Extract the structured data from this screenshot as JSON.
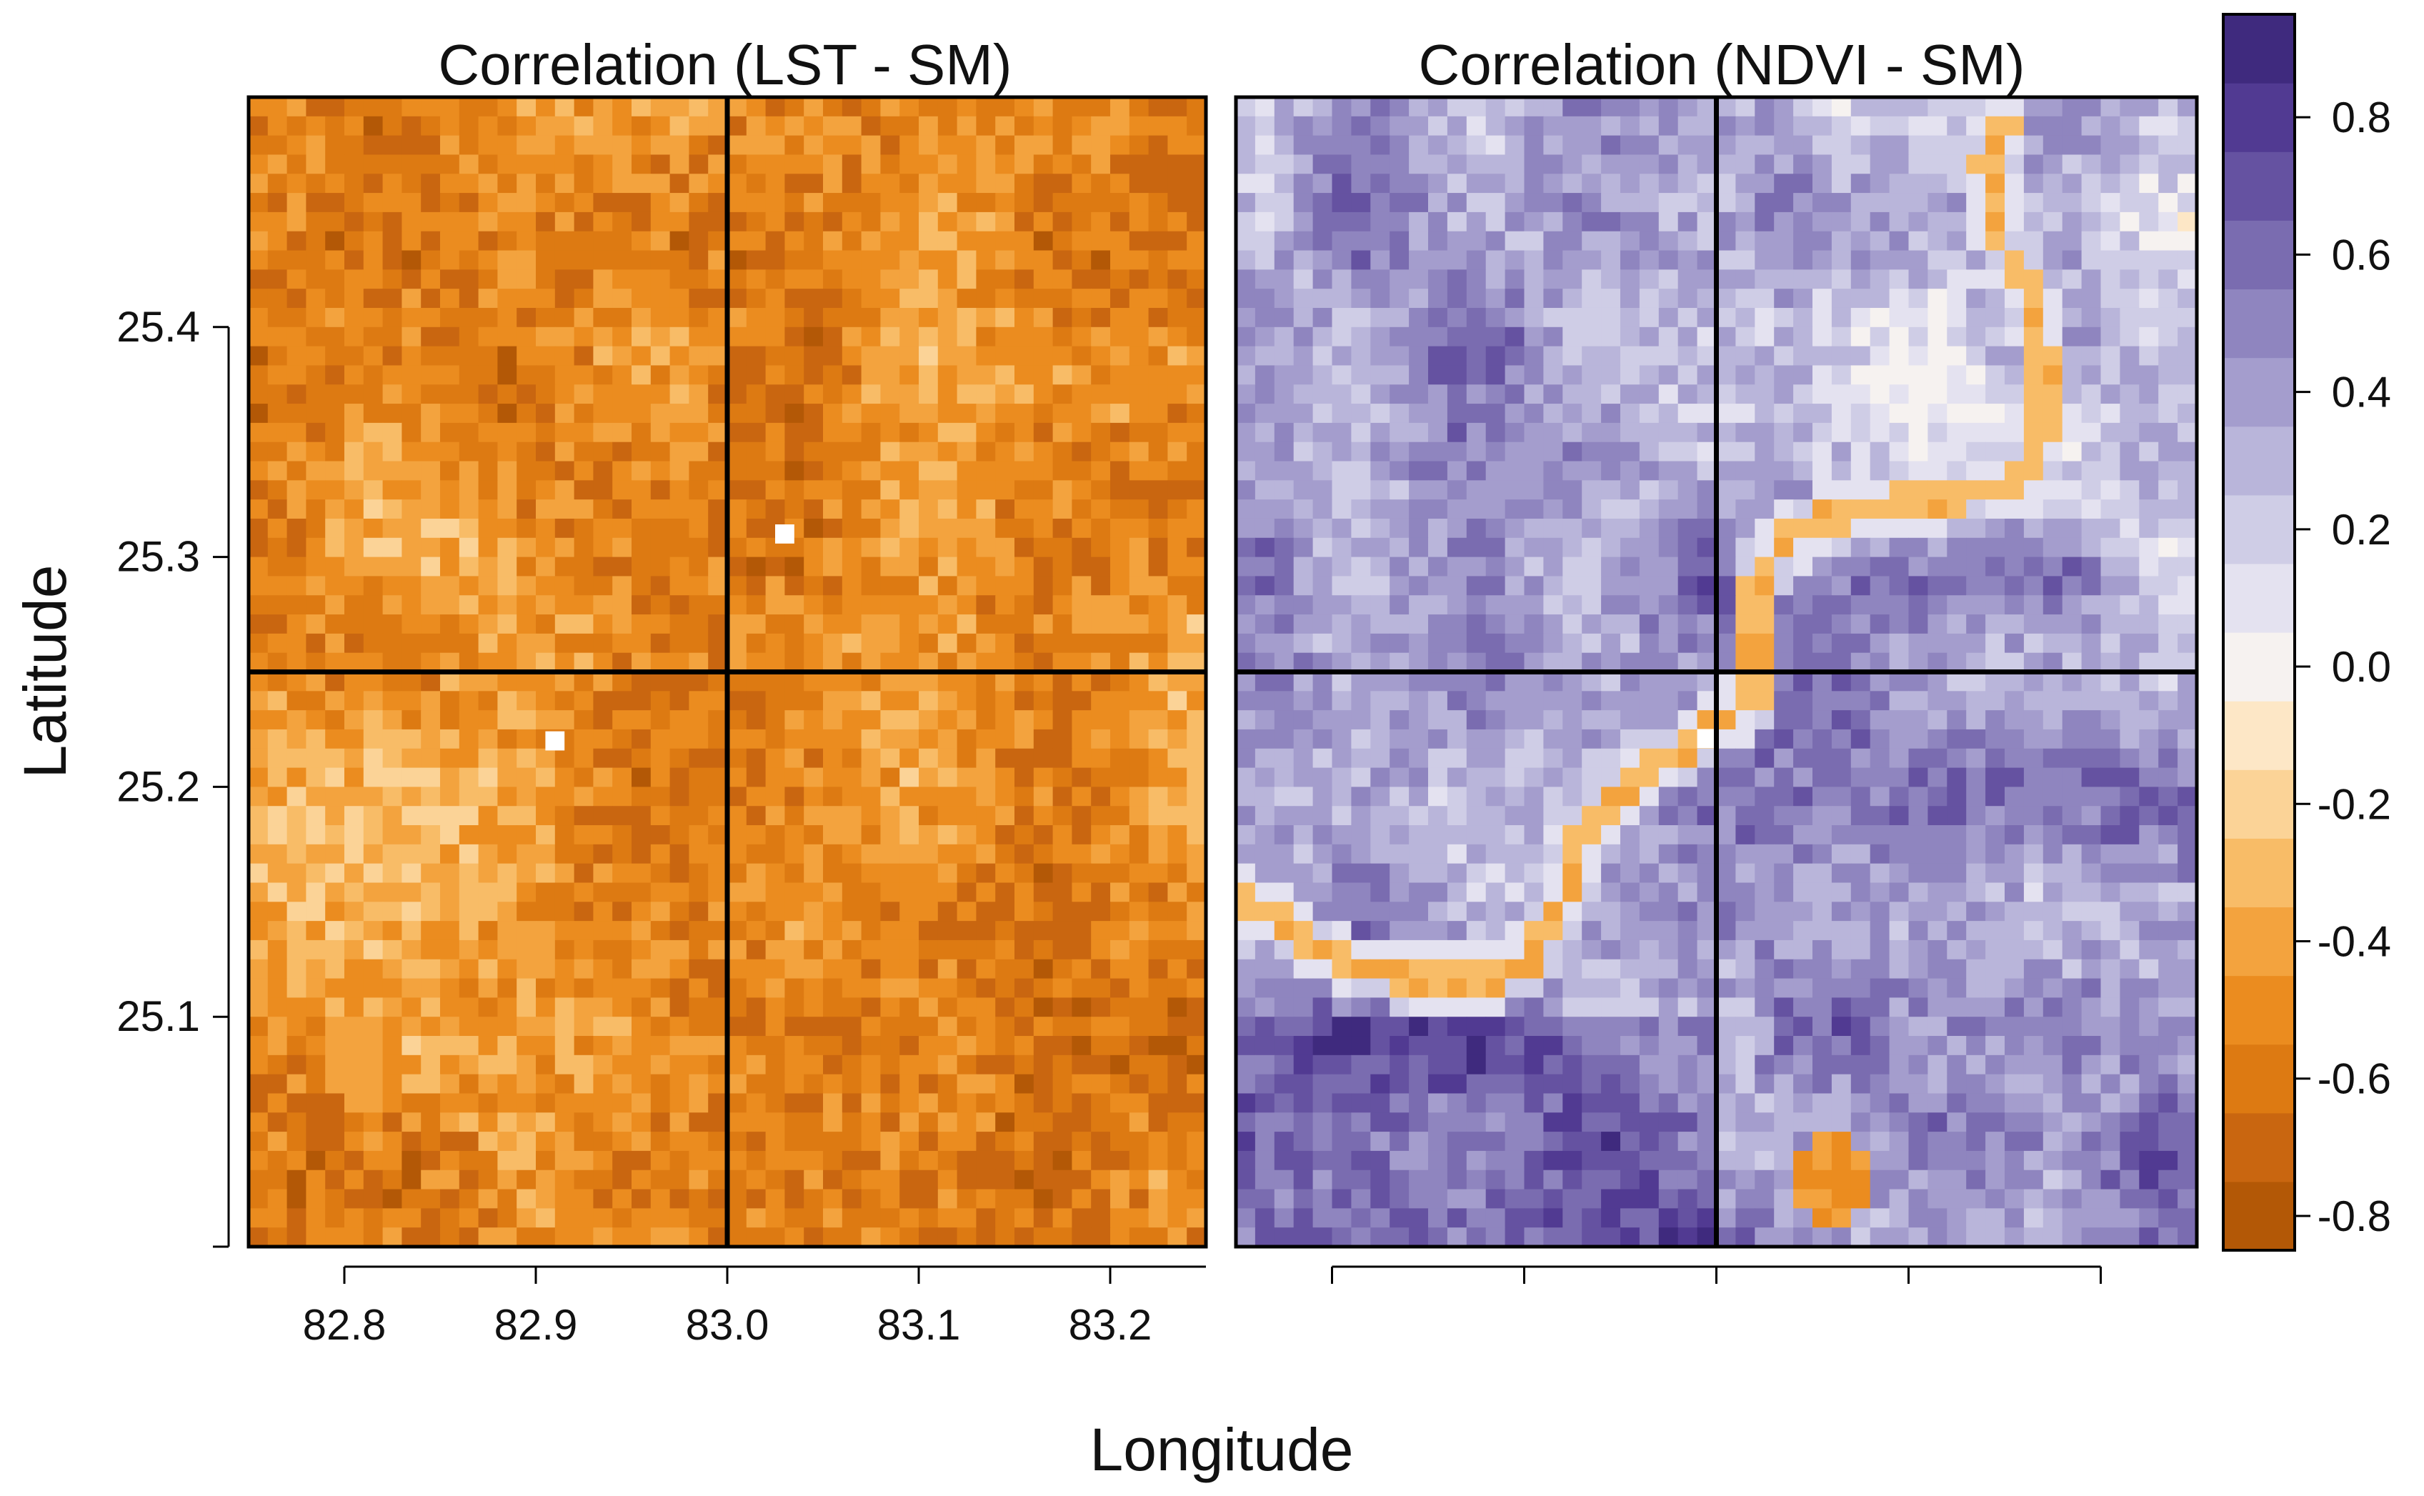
{
  "chart_data": {
    "type": "heatmap",
    "panels": [
      {
        "title": "Correlation (LST - SM)",
        "pattern": "lst",
        "value_range": [
          -0.75,
          -0.2
        ],
        "grid": {
          "cols": 50,
          "rows": 60
        },
        "white_pixels": [
          {
            "lon": 82.91,
            "lat": 25.22
          },
          {
            "lon": 83.03,
            "lat": 25.31
          }
        ]
      },
      {
        "title": "Correlation (NDVI - SM)",
        "pattern": "ndvi",
        "value_range": [
          -0.6,
          0.9
        ],
        "grid": {
          "cols": 50,
          "rows": 60
        },
        "features": [
          "river channel with negative correlation",
          "negative-correlation patch near 83.06, 25.03"
        ]
      }
    ],
    "xlabel": "Longitude",
    "ylabel": "Latitude",
    "x_ticks": [
      82.8,
      82.9,
      83.0,
      83.1,
      83.2
    ],
    "y_ticks": [
      25.1,
      25.2,
      25.3,
      25.4
    ],
    "xlim": [
      82.75,
      83.25
    ],
    "ylim": [
      25.0,
      25.5
    ],
    "reference_lines": {
      "lon": 83.0,
      "lat": 25.25
    },
    "colorbar": {
      "ticks": [
        -0.8,
        -0.6,
        -0.4,
        -0.2,
        0.0,
        0.2,
        0.4,
        0.6,
        0.8
      ],
      "tick_labels": [
        "-0.8",
        "-0.6",
        "-0.4",
        "-0.2",
        "0.0",
        "0.2",
        "0.4",
        "0.6",
        "0.8"
      ],
      "range": [
        -0.85,
        0.95
      ],
      "colors": [
        "#b35806",
        "#c96610",
        "#dd7a12",
        "#eb8c1f",
        "#f3a33e",
        "#f8bc67",
        "#fbd397",
        "#fde7c6",
        "#f6f2f0",
        "#e4e2f0",
        "#cfcde6",
        "#b9b5da",
        "#a49dcd",
        "#8f85bf",
        "#7a6cb0",
        "#6552a1",
        "#513a92",
        "#3f2a7e"
      ]
    }
  }
}
